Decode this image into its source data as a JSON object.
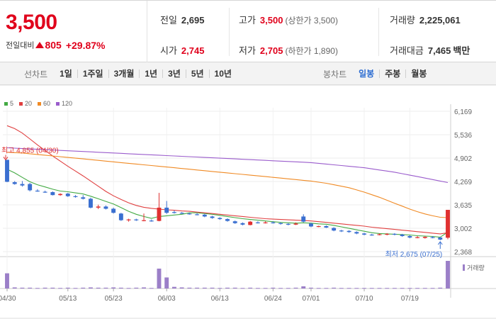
{
  "quote": {
    "price": "3,500",
    "change_label": "전일대비",
    "change_value": "805",
    "change_pct": "+29.87%",
    "prev_close_label": "전일",
    "prev_close": "2,695",
    "open_label": "시가",
    "open": "2,745",
    "high_label": "고가",
    "high": "3,500",
    "upper_limit": "(상한가 3,500)",
    "low_label": "저가",
    "low": "2,705",
    "lower_limit": "(하한가 1,890)",
    "volume_label": "거래량",
    "volume": "2,225,061",
    "value_label": "거래대금",
    "value": "7,465",
    "value_unit": "백만"
  },
  "tabs": {
    "line_label": "선차트",
    "line_periods": [
      "1일",
      "1주일",
      "3개월",
      "1년",
      "3년",
      "5년",
      "10년"
    ],
    "candle_label": "봉차트",
    "candle_periods": [
      "일봉",
      "주봉",
      "월봉"
    ],
    "candle_active": 0
  },
  "colors": {
    "up": "#e03030",
    "down": "#3a6fd0",
    "ma5": "#44aa44",
    "ma20": "#e04040",
    "ma60": "#f08a24",
    "ma120": "#9a5ccc",
    "volume": "#9b7fc8"
  },
  "chart_data": {
    "type": "candlestick",
    "ylim": [
      2368,
      6169
    ],
    "y_ticks": [
      "6,169",
      "5,536",
      "4,902",
      "4,269",
      "3,635",
      "3,002",
      "2,368"
    ],
    "x_ticks": [
      "04/30",
      "05/13",
      "05/23",
      "06/03",
      "06/13",
      "06/24",
      "07/01",
      "07/10",
      "07/19"
    ],
    "x_tick_index": [
      0,
      8,
      14,
      21,
      28,
      35,
      40,
      47,
      53
    ],
    "volume_label": "거래량",
    "max_marker": "최고 4,855 (04/30)",
    "min_marker": "최저 2,675 (07/25)",
    "legend": [
      {
        "name": "5",
        "color": "#44aa44"
      },
      {
        "name": "20",
        "color": "#e04040"
      },
      {
        "name": "60",
        "color": "#f08a24"
      },
      {
        "name": "120",
        "color": "#9a5ccc"
      }
    ],
    "candles": [
      [
        4855,
        4855,
        4250,
        4260
      ],
      [
        4250,
        4280,
        4180,
        4200
      ],
      [
        4200,
        4280,
        4130,
        4160
      ],
      [
        4200,
        4230,
        4000,
        4030
      ],
      [
        4020,
        4060,
        3990,
        4000
      ],
      [
        3990,
        4020,
        3960,
        3980
      ],
      [
        3980,
        4000,
        3890,
        3900
      ],
      [
        3900,
        3950,
        3880,
        3930
      ],
      [
        3940,
        3960,
        3850,
        3870
      ],
      [
        3870,
        3900,
        3830,
        3850
      ],
      [
        3840,
        3900,
        3780,
        3800
      ],
      [
        3800,
        3830,
        3540,
        3560
      ],
      [
        3560,
        3640,
        3520,
        3590
      ],
      [
        3590,
        3620,
        3510,
        3530
      ],
      [
        3530,
        3560,
        3400,
        3420
      ],
      [
        3400,
        3420,
        3200,
        3220
      ],
      [
        3220,
        3260,
        3180,
        3240
      ],
      [
        3240,
        3260,
        3200,
        3220
      ],
      [
        3210,
        3400,
        3190,
        3220
      ],
      [
        3210,
        3240,
        3180,
        3200
      ],
      [
        3200,
        3960,
        3190,
        3560
      ],
      [
        3560,
        3740,
        3390,
        3420
      ],
      [
        3440,
        3480,
        3400,
        3430
      ],
      [
        3420,
        3440,
        3390,
        3400
      ],
      [
        3400,
        3420,
        3370,
        3390
      ],
      [
        3380,
        3410,
        3350,
        3370
      ],
      [
        3370,
        3390,
        3300,
        3320
      ],
      [
        3320,
        3340,
        3260,
        3280
      ],
      [
        3280,
        3300,
        3230,
        3250
      ],
      [
        3250,
        3270,
        3180,
        3200
      ],
      [
        3190,
        3210,
        3120,
        3140
      ],
      [
        3140,
        3160,
        3080,
        3100
      ],
      [
        3090,
        3200,
        3080,
        3180
      ],
      [
        3160,
        3190,
        3130,
        3150
      ],
      [
        3160,
        3190,
        3130,
        3160
      ],
      [
        3160,
        3190,
        3130,
        3150
      ],
      [
        3140,
        3160,
        3100,
        3120
      ],
      [
        3120,
        3140,
        3080,
        3100
      ],
      [
        3100,
        3160,
        3090,
        3130
      ],
      [
        3320,
        3380,
        3160,
        3180
      ],
      [
        3130,
        3150,
        3030,
        3050
      ],
      [
        3050,
        3070,
        3030,
        3060
      ],
      [
        3060,
        3080,
        3010,
        3020
      ],
      [
        3010,
        3030,
        2920,
        2940
      ],
      [
        2940,
        2960,
        2900,
        2930
      ],
      [
        2930,
        2950,
        2880,
        2900
      ],
      [
        2900,
        2920,
        2840,
        2860
      ],
      [
        2860,
        2880,
        2810,
        2830
      ],
      [
        2830,
        2850,
        2800,
        2820
      ],
      [
        2820,
        2860,
        2810,
        2840
      ],
      [
        2840,
        2870,
        2810,
        2850
      ],
      [
        2850,
        2870,
        2810,
        2830
      ],
      [
        2830,
        2850,
        2770,
        2790
      ],
      [
        2790,
        2810,
        2730,
        2750
      ],
      [
        2750,
        2790,
        2730,
        2760
      ],
      [
        2740,
        2780,
        2720,
        2770
      ],
      [
        2760,
        2790,
        2730,
        2750
      ],
      [
        2750,
        2770,
        2675,
        2695
      ],
      [
        2745,
        3500,
        2705,
        3500
      ]
    ],
    "volumes": [
      0.55,
      0.04,
      0.03,
      0.03,
      0.02,
      0.03,
      0.03,
      0.02,
      0.03,
      0.02,
      0.03,
      0.04,
      0.03,
      0.03,
      0.04,
      0.03,
      0.02,
      0.03,
      0.04,
      0.02,
      0.72,
      0.4,
      0.06,
      0.04,
      0.03,
      0.03,
      0.03,
      0.03,
      0.02,
      0.03,
      0.03,
      0.02,
      0.03,
      0.02,
      0.02,
      0.03,
      0.02,
      0.02,
      0.03,
      0.08,
      0.03,
      0.02,
      0.02,
      0.03,
      0.02,
      0.02,
      0.02,
      0.02,
      0.02,
      0.02,
      0.02,
      0.02,
      0.02,
      0.02,
      0.02,
      0.02,
      0.02,
      0.03,
      1.0
    ],
    "series": [
      {
        "name": "5",
        "values": [
          4600,
          4500,
          4380,
          4260,
          4180,
          4120,
          4060,
          4010,
          3990,
          3960,
          3930,
          3870,
          3800,
          3730,
          3660,
          3560,
          3460,
          3380,
          3320,
          3270,
          3320,
          3340,
          3360,
          3380,
          3420,
          3420,
          3400,
          3380,
          3350,
          3320,
          3290,
          3260,
          3240,
          3220,
          3200,
          3180,
          3160,
          3150,
          3140,
          3150,
          3140,
          3120,
          3110,
          3080,
          3040,
          3000,
          2960,
          2920,
          2880,
          2860,
          2850,
          2840,
          2830,
          2820,
          2800,
          2790,
          2780,
          2760,
          2900
        ]
      },
      {
        "name": "20",
        "values": [
          5780,
          5700,
          5580,
          5420,
          5260,
          5110,
          4960,
          4820,
          4680,
          4550,
          4420,
          4280,
          4140,
          4000,
          3880,
          3780,
          3690,
          3620,
          3570,
          3540,
          3520,
          3500,
          3490,
          3470,
          3460,
          3440,
          3420,
          3400,
          3380,
          3360,
          3340,
          3320,
          3300,
          3280,
          3260,
          3250,
          3240,
          3230,
          3220,
          3210,
          3200,
          3180,
          3160,
          3140,
          3120,
          3100,
          3080,
          3060,
          3030,
          3010,
          2990,
          2970,
          2950,
          2930,
          2910,
          2890,
          2870,
          2850,
          2880
        ]
      },
      {
        "name": "60",
        "values": [
          5060,
          5050,
          5040,
          5020,
          5000,
          4980,
          4960,
          4940,
          4920,
          4900,
          4880,
          4860,
          4840,
          4820,
          4800,
          4780,
          4760,
          4740,
          4720,
          4700,
          4680,
          4660,
          4640,
          4620,
          4600,
          4580,
          4560,
          4540,
          4520,
          4500,
          4480,
          4460,
          4440,
          4420,
          4400,
          4380,
          4360,
          4340,
          4320,
          4300,
          4280,
          4250,
          4220,
          4180,
          4140,
          4100,
          4040,
          3980,
          3910,
          3840,
          3760,
          3680,
          3600,
          3520,
          3450,
          3390,
          3340,
          3300,
          3290
        ]
      },
      {
        "name": "120",
        "values": [
          5180,
          5170,
          5160,
          5150,
          5140,
          5130,
          5120,
          5110,
          5100,
          5090,
          5080,
          5070,
          5060,
          5050,
          5040,
          5030,
          5020,
          5010,
          5000,
          4990,
          4980,
          4970,
          4960,
          4950,
          4940,
          4930,
          4920,
          4910,
          4900,
          4890,
          4880,
          4870,
          4860,
          4850,
          4840,
          4830,
          4820,
          4810,
          4800,
          4790,
          4780,
          4760,
          4740,
          4720,
          4700,
          4680,
          4660,
          4640,
          4610,
          4580,
          4550,
          4520,
          4480,
          4440,
          4400,
          4360,
          4320,
          4280,
          4240
        ]
      }
    ]
  }
}
